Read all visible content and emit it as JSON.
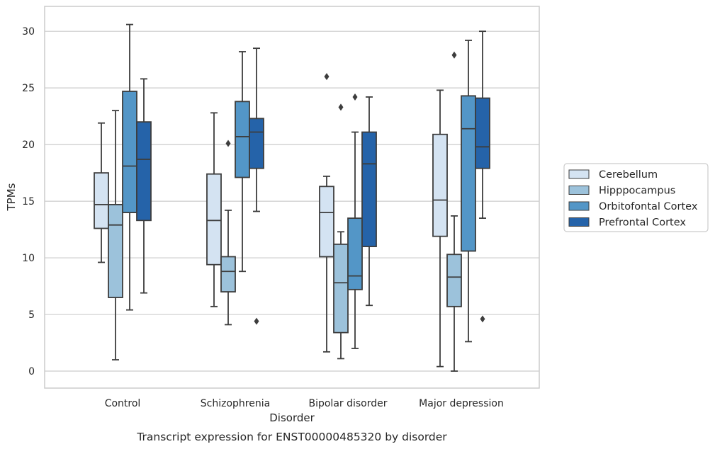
{
  "chart_data": {
    "type": "box",
    "xlabel": "Disorder",
    "ylabel": "TPMs",
    "caption": "Transcript expression for ENST00000485320 by disorder",
    "categories": [
      "Control",
      "Schizophrenia",
      "Bipolar disorder",
      "Major depression"
    ],
    "ylim": [
      -1.5,
      32.2
    ],
    "yticks": [
      0,
      5,
      10,
      15,
      20,
      25,
      30
    ],
    "grid": "horizontal",
    "legend_position": "right",
    "series": [
      {
        "name": "Cerebellum",
        "color": "#d4e3f2",
        "boxes": [
          {
            "whisker_low": 9.6,
            "q1": 12.6,
            "median": 14.7,
            "q3": 17.5,
            "whisker_high": 21.9,
            "outliers": []
          },
          {
            "whisker_low": 5.7,
            "q1": 9.4,
            "median": 13.3,
            "q3": 17.4,
            "whisker_high": 22.8,
            "outliers": []
          },
          {
            "whisker_low": 1.7,
            "q1": 10.1,
            "median": 14.0,
            "q3": 16.3,
            "whisker_high": 17.2,
            "outliers": [
              26.0
            ]
          },
          {
            "whisker_low": 0.4,
            "q1": 11.9,
            "median": 15.1,
            "q3": 20.9,
            "whisker_high": 24.8,
            "outliers": []
          }
        ]
      },
      {
        "name": "Hipppocampus",
        "color": "#9cc2db",
        "boxes": [
          {
            "whisker_low": 1.0,
            "q1": 6.5,
            "median": 12.9,
            "q3": 14.7,
            "whisker_high": 23.0,
            "outliers": []
          },
          {
            "whisker_low": 4.1,
            "q1": 7.0,
            "median": 8.8,
            "q3": 10.1,
            "whisker_high": 14.2,
            "outliers": [
              20.1
            ]
          },
          {
            "whisker_low": 1.1,
            "q1": 3.4,
            "median": 7.8,
            "q3": 11.2,
            "whisker_high": 12.3,
            "outliers": [
              23.3
            ]
          },
          {
            "whisker_low": 0.0,
            "q1": 5.7,
            "median": 8.3,
            "q3": 10.3,
            "whisker_high": 13.7,
            "outliers": [
              27.9
            ]
          }
        ]
      },
      {
        "name": "Orbitofontal Cortex",
        "color": "#5396c7",
        "boxes": [
          {
            "whisker_low": 5.4,
            "q1": 14.0,
            "median": 18.1,
            "q3": 24.7,
            "whisker_high": 30.6,
            "outliers": []
          },
          {
            "whisker_low": 8.8,
            "q1": 17.1,
            "median": 20.7,
            "q3": 23.8,
            "whisker_high": 28.2,
            "outliers": []
          },
          {
            "whisker_low": 2.0,
            "q1": 7.2,
            "median": 8.4,
            "q3": 13.5,
            "whisker_high": 21.1,
            "outliers": [
              24.2
            ]
          },
          {
            "whisker_low": 2.6,
            "q1": 10.6,
            "median": 21.4,
            "q3": 24.3,
            "whisker_high": 29.2,
            "outliers": []
          }
        ]
      },
      {
        "name": "Prefrontal Cortex",
        "color": "#2563a9",
        "boxes": [
          {
            "whisker_low": 6.9,
            "q1": 13.3,
            "median": 18.7,
            "q3": 22.0,
            "whisker_high": 25.8,
            "outliers": []
          },
          {
            "whisker_low": 14.1,
            "q1": 17.9,
            "median": 21.1,
            "q3": 22.3,
            "whisker_high": 28.5,
            "outliers": [
              4.4
            ]
          },
          {
            "whisker_low": 5.8,
            "q1": 11.0,
            "median": 18.3,
            "q3": 21.1,
            "whisker_high": 24.2,
            "outliers": []
          },
          {
            "whisker_low": 13.5,
            "q1": 17.9,
            "median": 19.8,
            "q3": 24.1,
            "whisker_high": 30.0,
            "outliers": [
              4.6
            ]
          }
        ]
      }
    ]
  }
}
